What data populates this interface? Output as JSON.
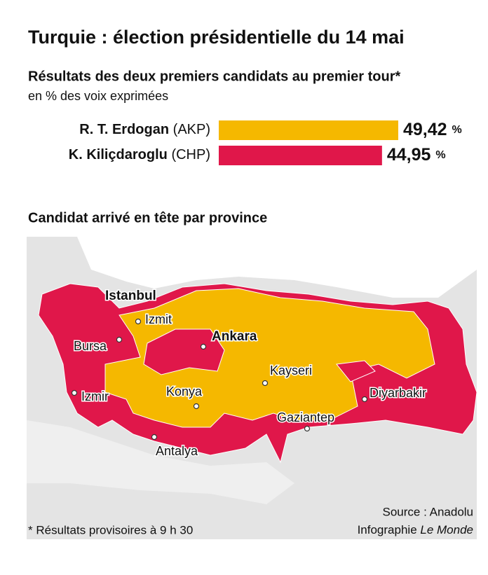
{
  "header": {
    "title": "Turquie : élection présidentielle du 14 mai",
    "subtitle": "Résultats des deux premiers candidats au premier tour*",
    "unit_note": "en % des voix exprimées"
  },
  "bars": [
    {
      "name": "R. T. Erdogan",
      "party": "(AKP)",
      "value": 49.42,
      "value_label": "49,42",
      "unit": "%",
      "color": "#f5b800"
    },
    {
      "name": "K. Kiliçdaroglu",
      "party": "(CHP)",
      "value": 44.95,
      "value_label": "44,95",
      "unit": "%",
      "color": "#e0174a"
    }
  ],
  "map": {
    "title": "Candidat arrivé en tête par province",
    "cities": [
      {
        "name": "Istanbul",
        "bold": true
      },
      {
        "name": "Izmit"
      },
      {
        "name": "Ankara",
        "bold": true
      },
      {
        "name": "Bursa"
      },
      {
        "name": "Izmir"
      },
      {
        "name": "Konya"
      },
      {
        "name": "Kayseri"
      },
      {
        "name": "Diyarbakir"
      },
      {
        "name": "Gaziantep"
      },
      {
        "name": "Antalya"
      }
    ]
  },
  "footer": {
    "note": "* Résultats provisoires à 9 h 30",
    "source": "Source : Anadolu",
    "credit": "Infographie ",
    "credit_name": "Le Monde"
  }
}
